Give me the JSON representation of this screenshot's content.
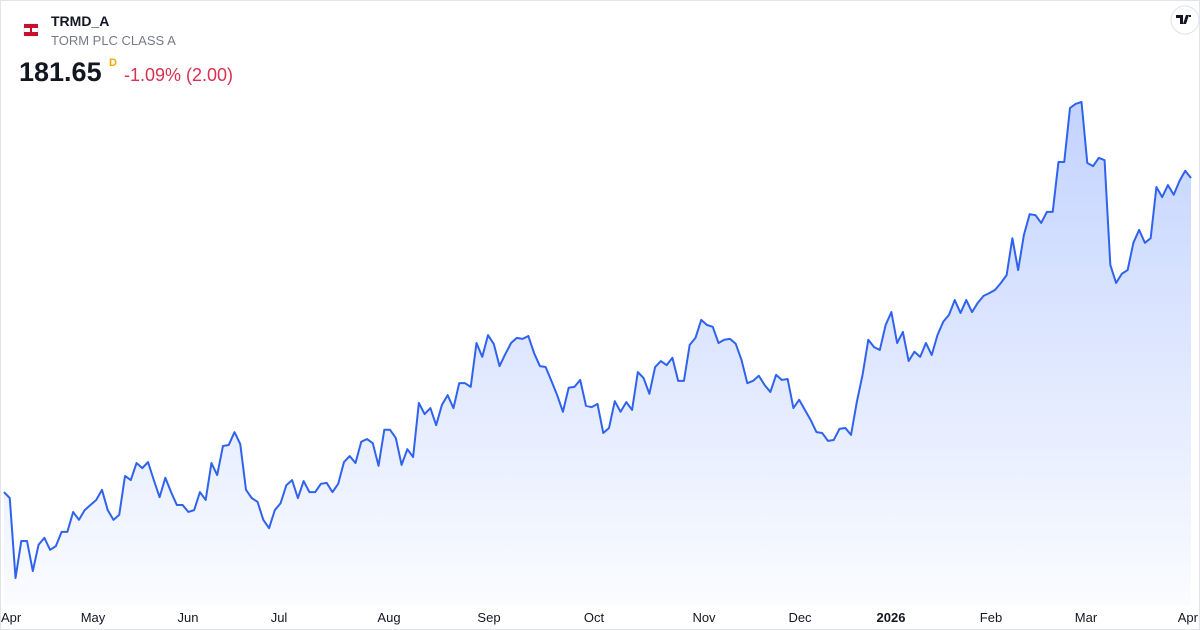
{
  "chart_data": {
    "type": "area",
    "title": "TRMD_A",
    "subtitle": "TORM PLC CLASS A",
    "last_price": "181.65",
    "interval": "D",
    "change": "-1.09% (2.00)",
    "color": "#2f63ee",
    "xtick_labels": [
      "Apr",
      "May",
      "Jun",
      "Jul",
      "Aug",
      "Sep",
      "Oct",
      "Nov",
      "Dec",
      "2026",
      "Feb",
      "Mar",
      "Apr"
    ],
    "values": [
      113.6,
      112.3,
      95.0,
      103.0,
      103.0,
      96.5,
      102.2,
      103.7,
      101.1,
      101.9,
      105.0,
      105.0,
      109.3,
      107.6,
      109.7,
      110.8,
      111.9,
      114.1,
      109.7,
      107.6,
      108.7,
      117.1,
      116.2,
      119.9,
      118.8,
      120.1,
      116.2,
      112.5,
      116.7,
      113.6,
      110.8,
      110.8,
      109.3,
      109.7,
      113.6,
      111.9,
      119.9,
      117.3,
      123.6,
      123.8,
      126.6,
      124.0,
      114.1,
      112.3,
      111.5,
      107.6,
      105.8,
      109.7,
      111.2,
      115.1,
      116.2,
      112.3,
      116.0,
      113.6,
      113.6,
      115.4,
      115.6,
      113.6,
      115.4,
      120.1,
      121.4,
      119.9,
      124.5,
      125.1,
      124.2,
      119.3,
      127.1,
      127.1,
      125.3,
      119.5,
      122.9,
      121.2,
      132.9,
      130.5,
      131.8,
      128.1,
      132.5,
      134.6,
      131.8,
      137.2,
      137.2,
      136.4,
      145.9,
      142.9,
      147.6,
      145.7,
      140.9,
      143.5,
      145.9,
      147.0,
      146.8,
      147.4,
      143.7,
      140.9,
      140.7,
      137.7,
      134.6,
      131.0,
      136.2,
      136.4,
      137.9,
      132.3,
      132.0,
      132.7,
      126.4,
      127.5,
      133.3,
      131.0,
      133.1,
      131.4,
      139.6,
      138.3,
      134.9,
      140.7,
      142.0,
      141.1,
      142.7,
      137.7,
      137.7,
      145.5,
      147.0,
      150.9,
      149.8,
      149.4,
      145.9,
      146.6,
      146.8,
      145.7,
      142.2,
      137.2,
      137.7,
      138.8,
      136.8,
      135.3,
      139.0,
      137.9,
      138.1,
      131.8,
      133.6,
      131.4,
      129.2,
      126.6,
      126.4,
      124.7,
      124.9,
      127.3,
      127.5,
      126.0,
      133.1,
      139.0,
      146.6,
      145.0,
      144.4,
      149.8,
      152.6,
      145.9,
      148.3,
      142.0,
      144.0,
      142.9,
      145.9,
      143.3,
      147.6,
      150.5,
      152.0,
      155.2,
      152.4,
      155.2,
      152.6,
      154.6,
      156.1,
      156.7,
      157.4,
      158.9,
      160.6,
      168.6,
      161.7,
      169.3,
      173.8,
      173.6,
      171.9,
      174.3,
      174.3,
      185.1,
      185.1,
      196.8,
      197.7,
      198.1,
      184.9,
      184.2,
      186.0,
      185.5,
      162.8,
      158.9,
      160.9,
      161.7,
      167.6,
      170.4,
      167.6,
      168.6,
      179.7,
      177.5,
      180.1,
      178.0,
      181.0,
      183.2,
      181.65
    ]
  }
}
